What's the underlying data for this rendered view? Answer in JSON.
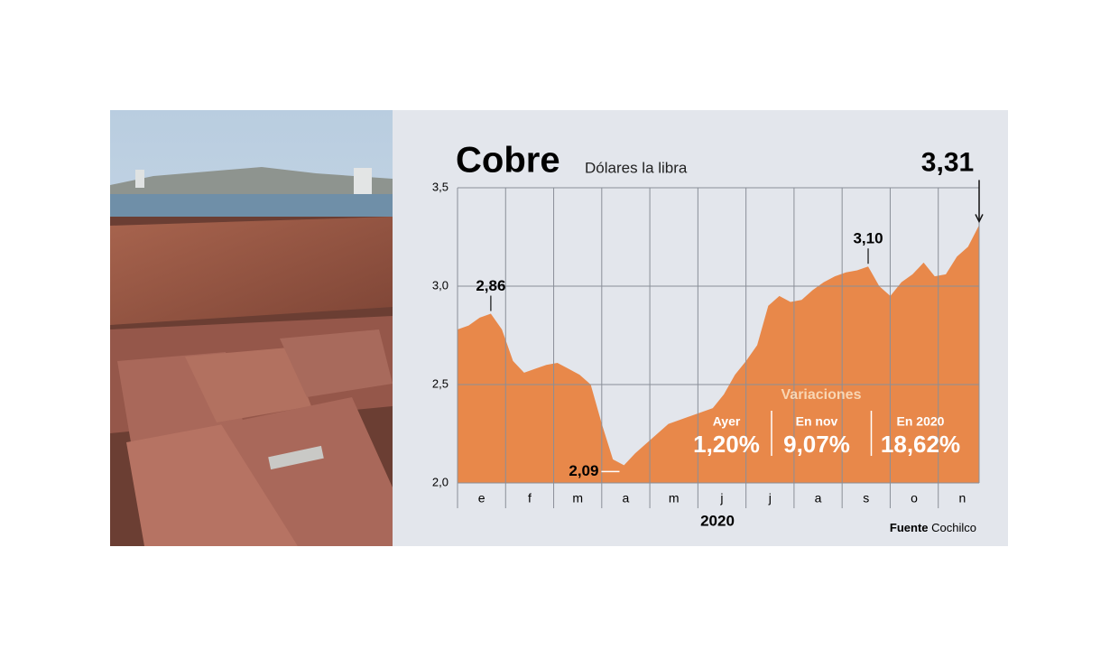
{
  "chart_data": {
    "type": "area",
    "title": "Cobre",
    "subtitle": "Dólares la libra",
    "x_label": "2020",
    "source": {
      "label": "Fuente",
      "text": "Cochilco"
    },
    "color": "#e8884a",
    "month_labels": [
      "e",
      "f",
      "m",
      "a",
      "m",
      "j",
      "j",
      "a",
      "s",
      "o",
      "n"
    ],
    "values": [
      2.78,
      2.8,
      2.84,
      2.86,
      2.78,
      2.62,
      2.56,
      2.58,
      2.6,
      2.61,
      2.58,
      2.55,
      2.5,
      2.3,
      2.12,
      2.09,
      2.15,
      2.2,
      2.25,
      2.3,
      2.32,
      2.34,
      2.36,
      2.38,
      2.45,
      2.55,
      2.62,
      2.7,
      2.9,
      2.95,
      2.92,
      2.93,
      2.98,
      3.02,
      3.05,
      3.07,
      3.08,
      3.1,
      3.0,
      2.95,
      3.02,
      3.06,
      3.12,
      3.05,
      3.06,
      3.15,
      3.2,
      3.31
    ],
    "value_labels": [
      null,
      null,
      null,
      "2,86",
      null,
      null,
      null,
      null,
      null,
      null,
      null,
      null,
      null,
      null,
      null,
      "2,09",
      null,
      null,
      null,
      null,
      null,
      null,
      null,
      null,
      null,
      null,
      null,
      null,
      null,
      null,
      null,
      null,
      null,
      null,
      null,
      null,
      null,
      "3,10",
      null,
      null,
      null,
      null,
      null,
      null,
      null,
      null,
      null,
      "3,31"
    ],
    "ylim": [
      2,
      3.5
    ],
    "yticks": [
      {
        "value": 2,
        "label": "2,0"
      },
      {
        "value": 2.5,
        "label": "2,5"
      },
      {
        "value": 3,
        "label": "3,0"
      },
      {
        "value": 3.5,
        "label": "3,5"
      }
    ],
    "grid": true,
    "variations": {
      "title": "Variaciones",
      "items": [
        {
          "label": "Ayer",
          "value": "1,20%"
        },
        {
          "label": "En nov",
          "value": "9,07%"
        },
        {
          "label": "En 2020",
          "value": "18,62%"
        }
      ]
    }
  }
}
